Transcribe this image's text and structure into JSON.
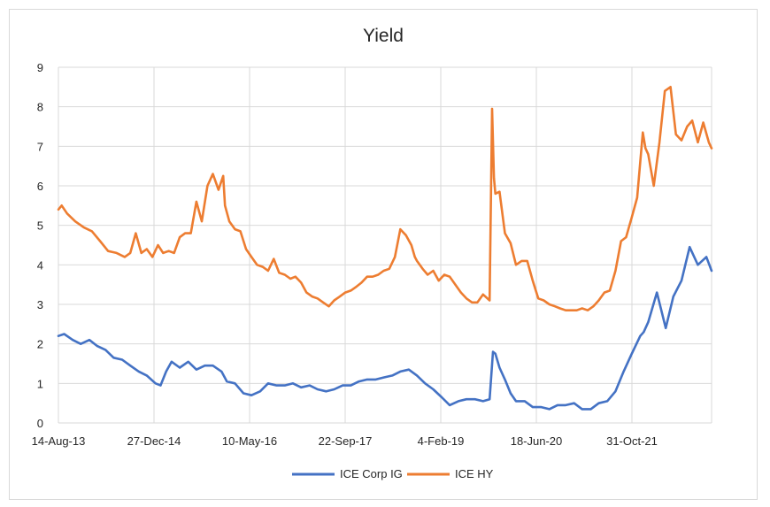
{
  "chart_data": {
    "type": "line",
    "title": "Yield",
    "xlabel": "",
    "ylabel": "",
    "ylim": [
      0,
      9
    ],
    "y_ticks": [
      "0",
      "1",
      "2",
      "3",
      "4",
      "5",
      "6",
      "7",
      "8",
      "9"
    ],
    "x_tick_labels": [
      "14-Aug-13",
      "27-Dec-14",
      "10-May-16",
      "22-Sep-17",
      "4-Feb-19",
      "18-Jun-20",
      "31-Oct-21"
    ],
    "xlim": [
      "2013-08-14",
      "2023-06-30"
    ],
    "grid": true,
    "legend_position": "bottom",
    "series": [
      {
        "name": "ICE Corp IG",
        "color": "#4472C4",
        "x": [
          "2013-08-14",
          "2013-09-15",
          "2013-11-01",
          "2013-12-15",
          "2014-02-01",
          "2014-03-15",
          "2014-05-01",
          "2014-06-15",
          "2014-08-01",
          "2014-09-15",
          "2014-11-01",
          "2014-12-15",
          "2015-02-01",
          "2015-03-01",
          "2015-04-01",
          "2015-05-01",
          "2015-06-15",
          "2015-08-01",
          "2015-09-15",
          "2015-11-01",
          "2015-12-15",
          "2016-02-01",
          "2016-03-01",
          "2016-04-15",
          "2016-06-01",
          "2016-07-15",
          "2016-09-01",
          "2016-10-15",
          "2016-12-01",
          "2017-01-15",
          "2017-03-01",
          "2017-04-15",
          "2017-06-01",
          "2017-07-15",
          "2017-09-01",
          "2017-10-15",
          "2017-12-01",
          "2018-01-15",
          "2018-03-01",
          "2018-04-15",
          "2018-06-01",
          "2018-07-15",
          "2018-09-01",
          "2018-10-15",
          "2018-12-01",
          "2019-01-15",
          "2019-03-01",
          "2019-04-15",
          "2019-06-01",
          "2019-07-15",
          "2019-09-01",
          "2019-10-15",
          "2019-12-01",
          "2020-01-15",
          "2020-02-20",
          "2020-03-10",
          "2020-03-23",
          "2020-04-15",
          "2020-05-15",
          "2020-06-15",
          "2020-07-15",
          "2020-09-01",
          "2020-10-15",
          "2020-12-01",
          "2021-01-15",
          "2021-03-01",
          "2021-04-15",
          "2021-06-01",
          "2021-07-15",
          "2021-09-01",
          "2021-10-15",
          "2021-12-01",
          "2022-01-15",
          "2022-03-01",
          "2022-04-15",
          "2022-06-01",
          "2022-06-20",
          "2022-07-15",
          "2022-09-01",
          "2022-10-20",
          "2022-12-01",
          "2023-01-15",
          "2023-03-01",
          "2023-04-15",
          "2023-06-01",
          "2023-06-30"
        ],
        "values": [
          2.2,
          2.25,
          2.1,
          2.0,
          2.1,
          1.95,
          1.85,
          1.65,
          1.6,
          1.45,
          1.3,
          1.2,
          1.0,
          0.95,
          1.3,
          1.55,
          1.4,
          1.55,
          1.35,
          1.45,
          1.45,
          1.3,
          1.05,
          1.0,
          0.75,
          0.7,
          0.8,
          1.0,
          0.95,
          0.95,
          1.0,
          0.9,
          0.95,
          0.85,
          0.8,
          0.85,
          0.95,
          0.95,
          1.05,
          1.1,
          1.1,
          1.15,
          1.2,
          1.3,
          1.35,
          1.2,
          1.0,
          0.85,
          0.65,
          0.45,
          0.55,
          0.6,
          0.6,
          0.55,
          0.6,
          1.8,
          1.75,
          1.4,
          1.1,
          0.75,
          0.55,
          0.55,
          0.4,
          0.4,
          0.35,
          0.45,
          0.45,
          0.5,
          0.35,
          0.35,
          0.5,
          0.55,
          0.8,
          1.3,
          1.75,
          2.2,
          2.3,
          2.55,
          3.3,
          2.4,
          3.2,
          3.6,
          4.45,
          4.0,
          4.2,
          3.85
        ]
      },
      {
        "name": "ICE HY",
        "color": "#ED7D31",
        "x": [
          "2013-08-14",
          "2013-09-01",
          "2013-10-01",
          "2013-11-15",
          "2014-01-01",
          "2014-02-15",
          "2014-04-01",
          "2014-05-15",
          "2014-07-01",
          "2014-08-15",
          "2014-09-15",
          "2014-10-15",
          "2014-11-15",
          "2014-12-15",
          "2015-01-15",
          "2015-02-15",
          "2015-03-15",
          "2015-04-15",
          "2015-05-15",
          "2015-06-15",
          "2015-07-15",
          "2015-08-15",
          "2015-09-15",
          "2015-10-15",
          "2015-11-15",
          "2015-12-15",
          "2016-01-15",
          "2016-02-10",
          "2016-02-20",
          "2016-03-15",
          "2016-04-15",
          "2016-05-15",
          "2016-06-15",
          "2016-07-15",
          "2016-08-15",
          "2016-09-15",
          "2016-10-15",
          "2016-11-15",
          "2016-12-15",
          "2017-01-15",
          "2017-02-15",
          "2017-03-15",
          "2017-04-15",
          "2017-05-15",
          "2017-06-15",
          "2017-07-15",
          "2017-08-15",
          "2017-09-15",
          "2017-10-15",
          "2017-11-15",
          "2017-12-15",
          "2018-01-15",
          "2018-02-15",
          "2018-03-15",
          "2018-04-15",
          "2018-05-15",
          "2018-06-15",
          "2018-07-15",
          "2018-08-15",
          "2018-09-15",
          "2018-10-15",
          "2018-11-15",
          "2018-12-15",
          "2019-01-03",
          "2019-01-15",
          "2019-02-15",
          "2019-03-15",
          "2019-04-15",
          "2019-05-15",
          "2019-06-15",
          "2019-07-15",
          "2019-08-15",
          "2019-09-15",
          "2019-10-15",
          "2019-11-15",
          "2019-12-15",
          "2020-01-15",
          "2020-02-20",
          "2020-03-05",
          "2020-03-15",
          "2020-03-23",
          "2020-04-15",
          "2020-05-15",
          "2020-06-15",
          "2020-07-15",
          "2020-08-15",
          "2020-09-15",
          "2020-10-15",
          "2020-11-15",
          "2020-12-15",
          "2021-01-15",
          "2021-02-15",
          "2021-03-15",
          "2021-04-15",
          "2021-05-15",
          "2021-06-15",
          "2021-07-15",
          "2021-08-15",
          "2021-09-15",
          "2021-10-15",
          "2021-11-15",
          "2021-12-15",
          "2022-01-15",
          "2022-02-15",
          "2022-03-15",
          "2022-04-15",
          "2022-05-15",
          "2022-06-15",
          "2022-06-30",
          "2022-07-15",
          "2022-08-15",
          "2022-09-15",
          "2022-10-15",
          "2022-11-15",
          "2022-12-15",
          "2023-01-15",
          "2023-02-15",
          "2023-03-15",
          "2023-04-15",
          "2023-05-15",
          "2023-06-15",
          "2023-06-30"
        ],
        "values": [
          5.4,
          5.5,
          5.3,
          5.1,
          4.95,
          4.85,
          4.6,
          4.35,
          4.3,
          4.2,
          4.3,
          4.8,
          4.3,
          4.4,
          4.2,
          4.5,
          4.3,
          4.35,
          4.3,
          4.7,
          4.8,
          4.8,
          5.6,
          5.1,
          6.0,
          6.3,
          5.9,
          6.25,
          5.5,
          5.1,
          4.9,
          4.85,
          4.4,
          4.2,
          4.0,
          3.95,
          3.85,
          4.15,
          3.8,
          3.75,
          3.65,
          3.7,
          3.55,
          3.3,
          3.2,
          3.15,
          3.05,
          2.95,
          3.1,
          3.2,
          3.3,
          3.35,
          3.45,
          3.55,
          3.7,
          3.7,
          3.75,
          3.85,
          3.9,
          4.2,
          4.9,
          4.75,
          4.5,
          4.2,
          4.1,
          3.9,
          3.75,
          3.85,
          3.6,
          3.75,
          3.7,
          3.5,
          3.3,
          3.15,
          3.05,
          3.05,
          3.25,
          3.1,
          7.95,
          6.2,
          5.8,
          5.85,
          4.8,
          4.55,
          4.0,
          4.1,
          4.1,
          3.6,
          3.15,
          3.1,
          3.0,
          2.95,
          2.9,
          2.85,
          2.85,
          2.85,
          2.9,
          2.85,
          2.95,
          3.1,
          3.3,
          3.35,
          3.85,
          4.6,
          4.7,
          5.2,
          5.7,
          7.35,
          6.95,
          6.8,
          6.0,
          7.1,
          8.4,
          8.5,
          7.3,
          7.15,
          7.5,
          7.65,
          7.1,
          7.6,
          7.1,
          6.95
        ]
      }
    ]
  }
}
